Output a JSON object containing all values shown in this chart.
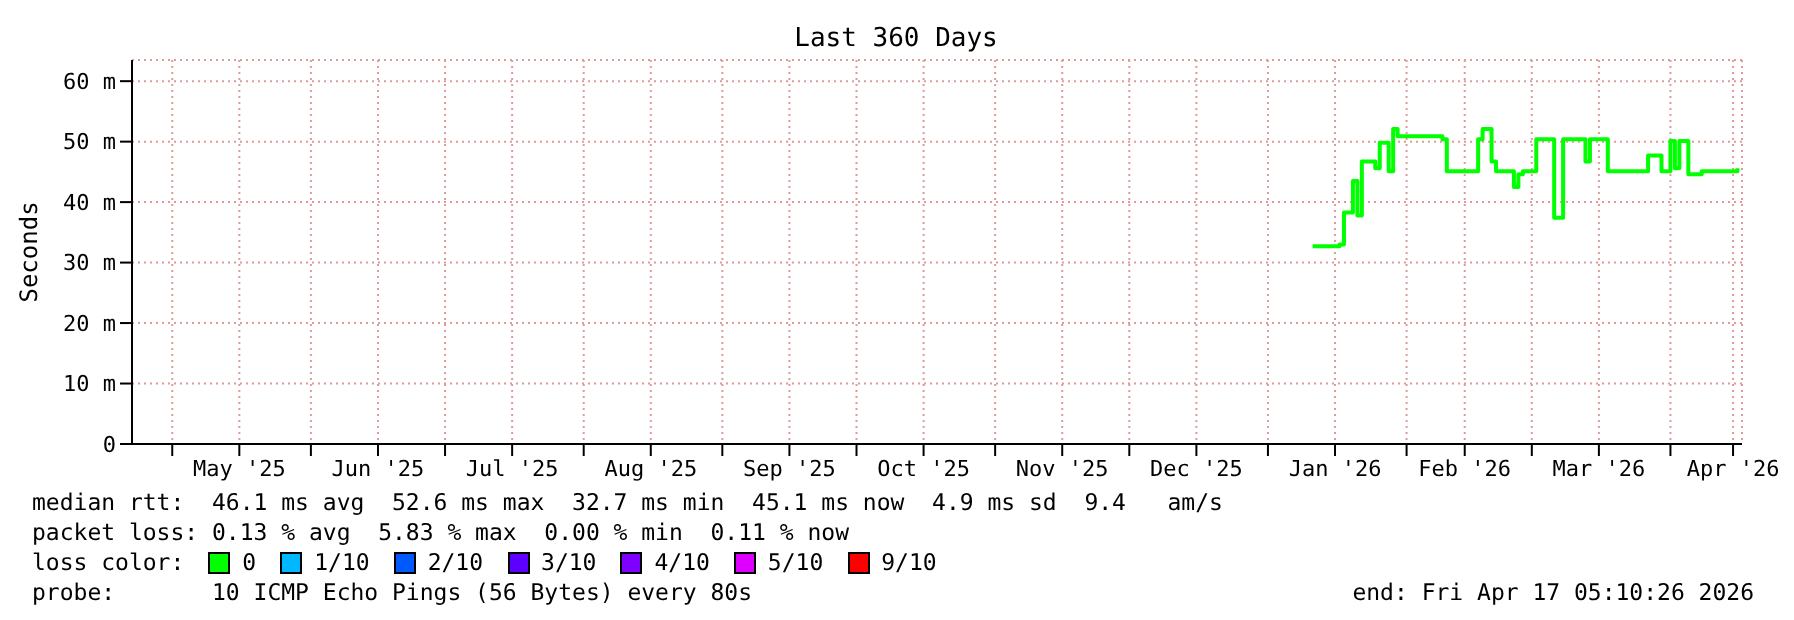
{
  "chart_data": {
    "type": "step",
    "title": "Last 360 Days",
    "ylabel": "Seconds",
    "legend_title": "loss color:",
    "legend": "bottom",
    "grid": true,
    "xlim": [
      "2025-04-22",
      "2026-04-17"
    ],
    "xticks": [
      {
        "value": "2025-05-01",
        "label": null
      },
      {
        "value": "2025-05-16",
        "label": "May '25"
      },
      {
        "value": "2025-06-01",
        "label": null
      },
      {
        "value": "2025-06-16",
        "label": "Jun '25"
      },
      {
        "value": "2025-07-01",
        "label": null
      },
      {
        "value": "2025-07-16",
        "label": "Jul '25"
      },
      {
        "value": "2025-08-01",
        "label": null
      },
      {
        "value": "2025-08-16",
        "label": "Aug '25"
      },
      {
        "value": "2025-09-01",
        "label": null
      },
      {
        "value": "2025-09-16",
        "label": "Sep '25"
      },
      {
        "value": "2025-10-01",
        "label": null
      },
      {
        "value": "2025-10-16",
        "label": "Oct '25"
      },
      {
        "value": "2025-11-01",
        "label": null
      },
      {
        "value": "2025-11-16",
        "label": "Nov '25"
      },
      {
        "value": "2025-12-01",
        "label": null
      },
      {
        "value": "2025-12-16",
        "label": "Dec '25"
      },
      {
        "value": "2026-01-01",
        "label": null
      },
      {
        "value": "2026-01-16",
        "label": "Jan '26"
      },
      {
        "value": "2026-02-01",
        "label": null
      },
      {
        "value": "2026-02-14",
        "label": "Feb '26"
      },
      {
        "value": "2026-03-01",
        "label": null
      },
      {
        "value": "2026-03-16",
        "label": "Mar '26"
      },
      {
        "value": "2026-04-01",
        "label": null
      },
      {
        "value": "2026-04-15",
        "label": "Apr '26"
      }
    ],
    "ylim": [
      0,
      63.5
    ],
    "yticks": [
      0,
      {
        "value": 10,
        "label": "10 m"
      },
      {
        "value": 20,
        "label": "20 m"
      },
      {
        "value": 30,
        "label": "30 m"
      },
      {
        "value": 40,
        "label": "40 m"
      },
      {
        "value": 50,
        "label": "50 m"
      },
      {
        "value": 60,
        "label": "60 m"
      }
    ],
    "x": [
      "2026-01-11",
      "2026-01-17",
      "2026-01-18",
      "2026-01-20",
      "2026-01-21",
      "2026-01-22",
      "2026-01-25",
      "2026-01-26",
      "2026-01-28",
      "2026-01-29",
      "2026-01-30",
      "2026-02-04",
      "2026-02-09",
      "2026-02-10",
      "2026-02-16",
      "2026-02-17",
      "2026-02-18",
      "2026-02-19",
      "2026-02-20",
      "2026-02-21",
      "2026-02-24",
      "2026-02-25",
      "2026-02-26",
      "2026-02-27",
      "2026-03-01",
      "2026-03-02",
      "2026-03-05",
      "2026-03-06",
      "2026-03-07",
      "2026-03-08",
      "2026-03-12",
      "2026-03-13",
      "2026-03-14",
      "2026-03-17",
      "2026-03-18",
      "2026-03-26",
      "2026-03-27",
      "2026-03-29",
      "2026-03-30",
      "2026-03-31",
      "2026-04-01",
      "2026-04-02",
      "2026-04-03",
      "2026-04-04",
      "2026-04-05",
      "2026-04-07",
      "2026-04-08",
      "2026-04-16"
    ],
    "series": [
      {
        "name": "0",
        "color": "#00ff00",
        "values": [
          32.7,
          33.0,
          38.3,
          43.5,
          37.8,
          46.7,
          45.6,
          49.8,
          45.1,
          52.1,
          50.9,
          50.9,
          50.4,
          45.1,
          45.1,
          50.4,
          52.1,
          52.1,
          46.7,
          45.1,
          45.1,
          42.5,
          44.6,
          45.1,
          45.1,
          50.4,
          50.4,
          37.4,
          37.4,
          50.4,
          50.4,
          46.7,
          50.4,
          50.4,
          45.1,
          45.1,
          47.7,
          47.7,
          45.1,
          45.1,
          50.1,
          45.6,
          50.1,
          50.1,
          44.6,
          44.6,
          45.1,
          45.6
        ]
      },
      {
        "name": "1/10",
        "color": "#00b8ff",
        "values": [
          null,
          null,
          null,
          null,
          null,
          null,
          null,
          null,
          null,
          null,
          null,
          null,
          null,
          null,
          null,
          null,
          null,
          null,
          null,
          null,
          null,
          null,
          null,
          null,
          null,
          null,
          null,
          null,
          null,
          null,
          null,
          null,
          null,
          null,
          null,
          null,
          null,
          null,
          null,
          null,
          null,
          null,
          null,
          null,
          null,
          null,
          null,
          null
        ]
      },
      {
        "name": "2/10",
        "color": "#0059ff",
        "values": [
          null,
          null,
          null,
          null,
          null,
          null,
          null,
          null,
          null,
          null,
          null,
          null,
          null,
          null,
          null,
          null,
          null,
          null,
          null,
          null,
          null,
          null,
          null,
          null,
          null,
          null,
          null,
          null,
          null,
          null,
          null,
          null,
          null,
          null,
          null,
          null,
          null,
          null,
          null,
          null,
          null,
          null,
          null,
          null,
          null,
          null,
          null,
          null
        ]
      },
      {
        "name": "3/10",
        "color": "#5e00ff",
        "values": [
          null,
          null,
          null,
          null,
          null,
          null,
          null,
          null,
          null,
          null,
          null,
          null,
          null,
          null,
          null,
          null,
          null,
          null,
          null,
          null,
          null,
          null,
          null,
          null,
          null,
          null,
          null,
          null,
          null,
          null,
          null,
          null,
          null,
          null,
          null,
          null,
          null,
          null,
          null,
          null,
          null,
          null,
          null,
          null,
          null,
          null,
          null,
          null
        ]
      },
      {
        "name": "4/10",
        "color": "#7e00ff",
        "values": [
          null,
          null,
          null,
          null,
          null,
          null,
          null,
          null,
          null,
          null,
          null,
          null,
          null,
          null,
          null,
          null,
          null,
          null,
          null,
          null,
          null,
          null,
          null,
          null,
          null,
          null,
          null,
          null,
          null,
          null,
          null,
          null,
          null,
          null,
          null,
          null,
          null,
          null,
          null,
          null,
          null,
          null,
          null,
          null,
          null,
          null,
          null,
          null
        ]
      },
      {
        "name": "5/10",
        "color": "#dd00ff",
        "values": [
          null,
          null,
          null,
          null,
          null,
          null,
          null,
          null,
          null,
          null,
          null,
          null,
          null,
          null,
          null,
          null,
          null,
          null,
          null,
          null,
          null,
          null,
          null,
          null,
          null,
          null,
          null,
          null,
          null,
          null,
          null,
          null,
          null,
          null,
          null,
          null,
          null,
          null,
          null,
          null,
          null,
          null,
          null,
          null,
          null,
          null,
          null,
          null
        ]
      },
      {
        "name": "9/10",
        "color": "#ff0000",
        "values": [
          null,
          null,
          null,
          null,
          null,
          null,
          null,
          null,
          null,
          null,
          null,
          null,
          null,
          null,
          null,
          null,
          null,
          null,
          null,
          null,
          null,
          null,
          null,
          null,
          null,
          null,
          null,
          null,
          null,
          null,
          null,
          null,
          null,
          null,
          null,
          null,
          null,
          null,
          null,
          null,
          null,
          null,
          null,
          null,
          null,
          null,
          null,
          null
        ]
      }
    ],
    "annotations": [
      "median rtt:  46.1 ms avg  52.6 ms max  32.7 ms min  45.1 ms now  4.9 ms sd  9.4   am/s",
      "packet loss: 0.13 % avg  5.83 % max  0.00 % min  0.11 % now",
      "probe:       10 ICMP Echo Pings (56 Bytes) every 80s",
      "end: Fri Apr 17 05:10:26 2026"
    ]
  }
}
